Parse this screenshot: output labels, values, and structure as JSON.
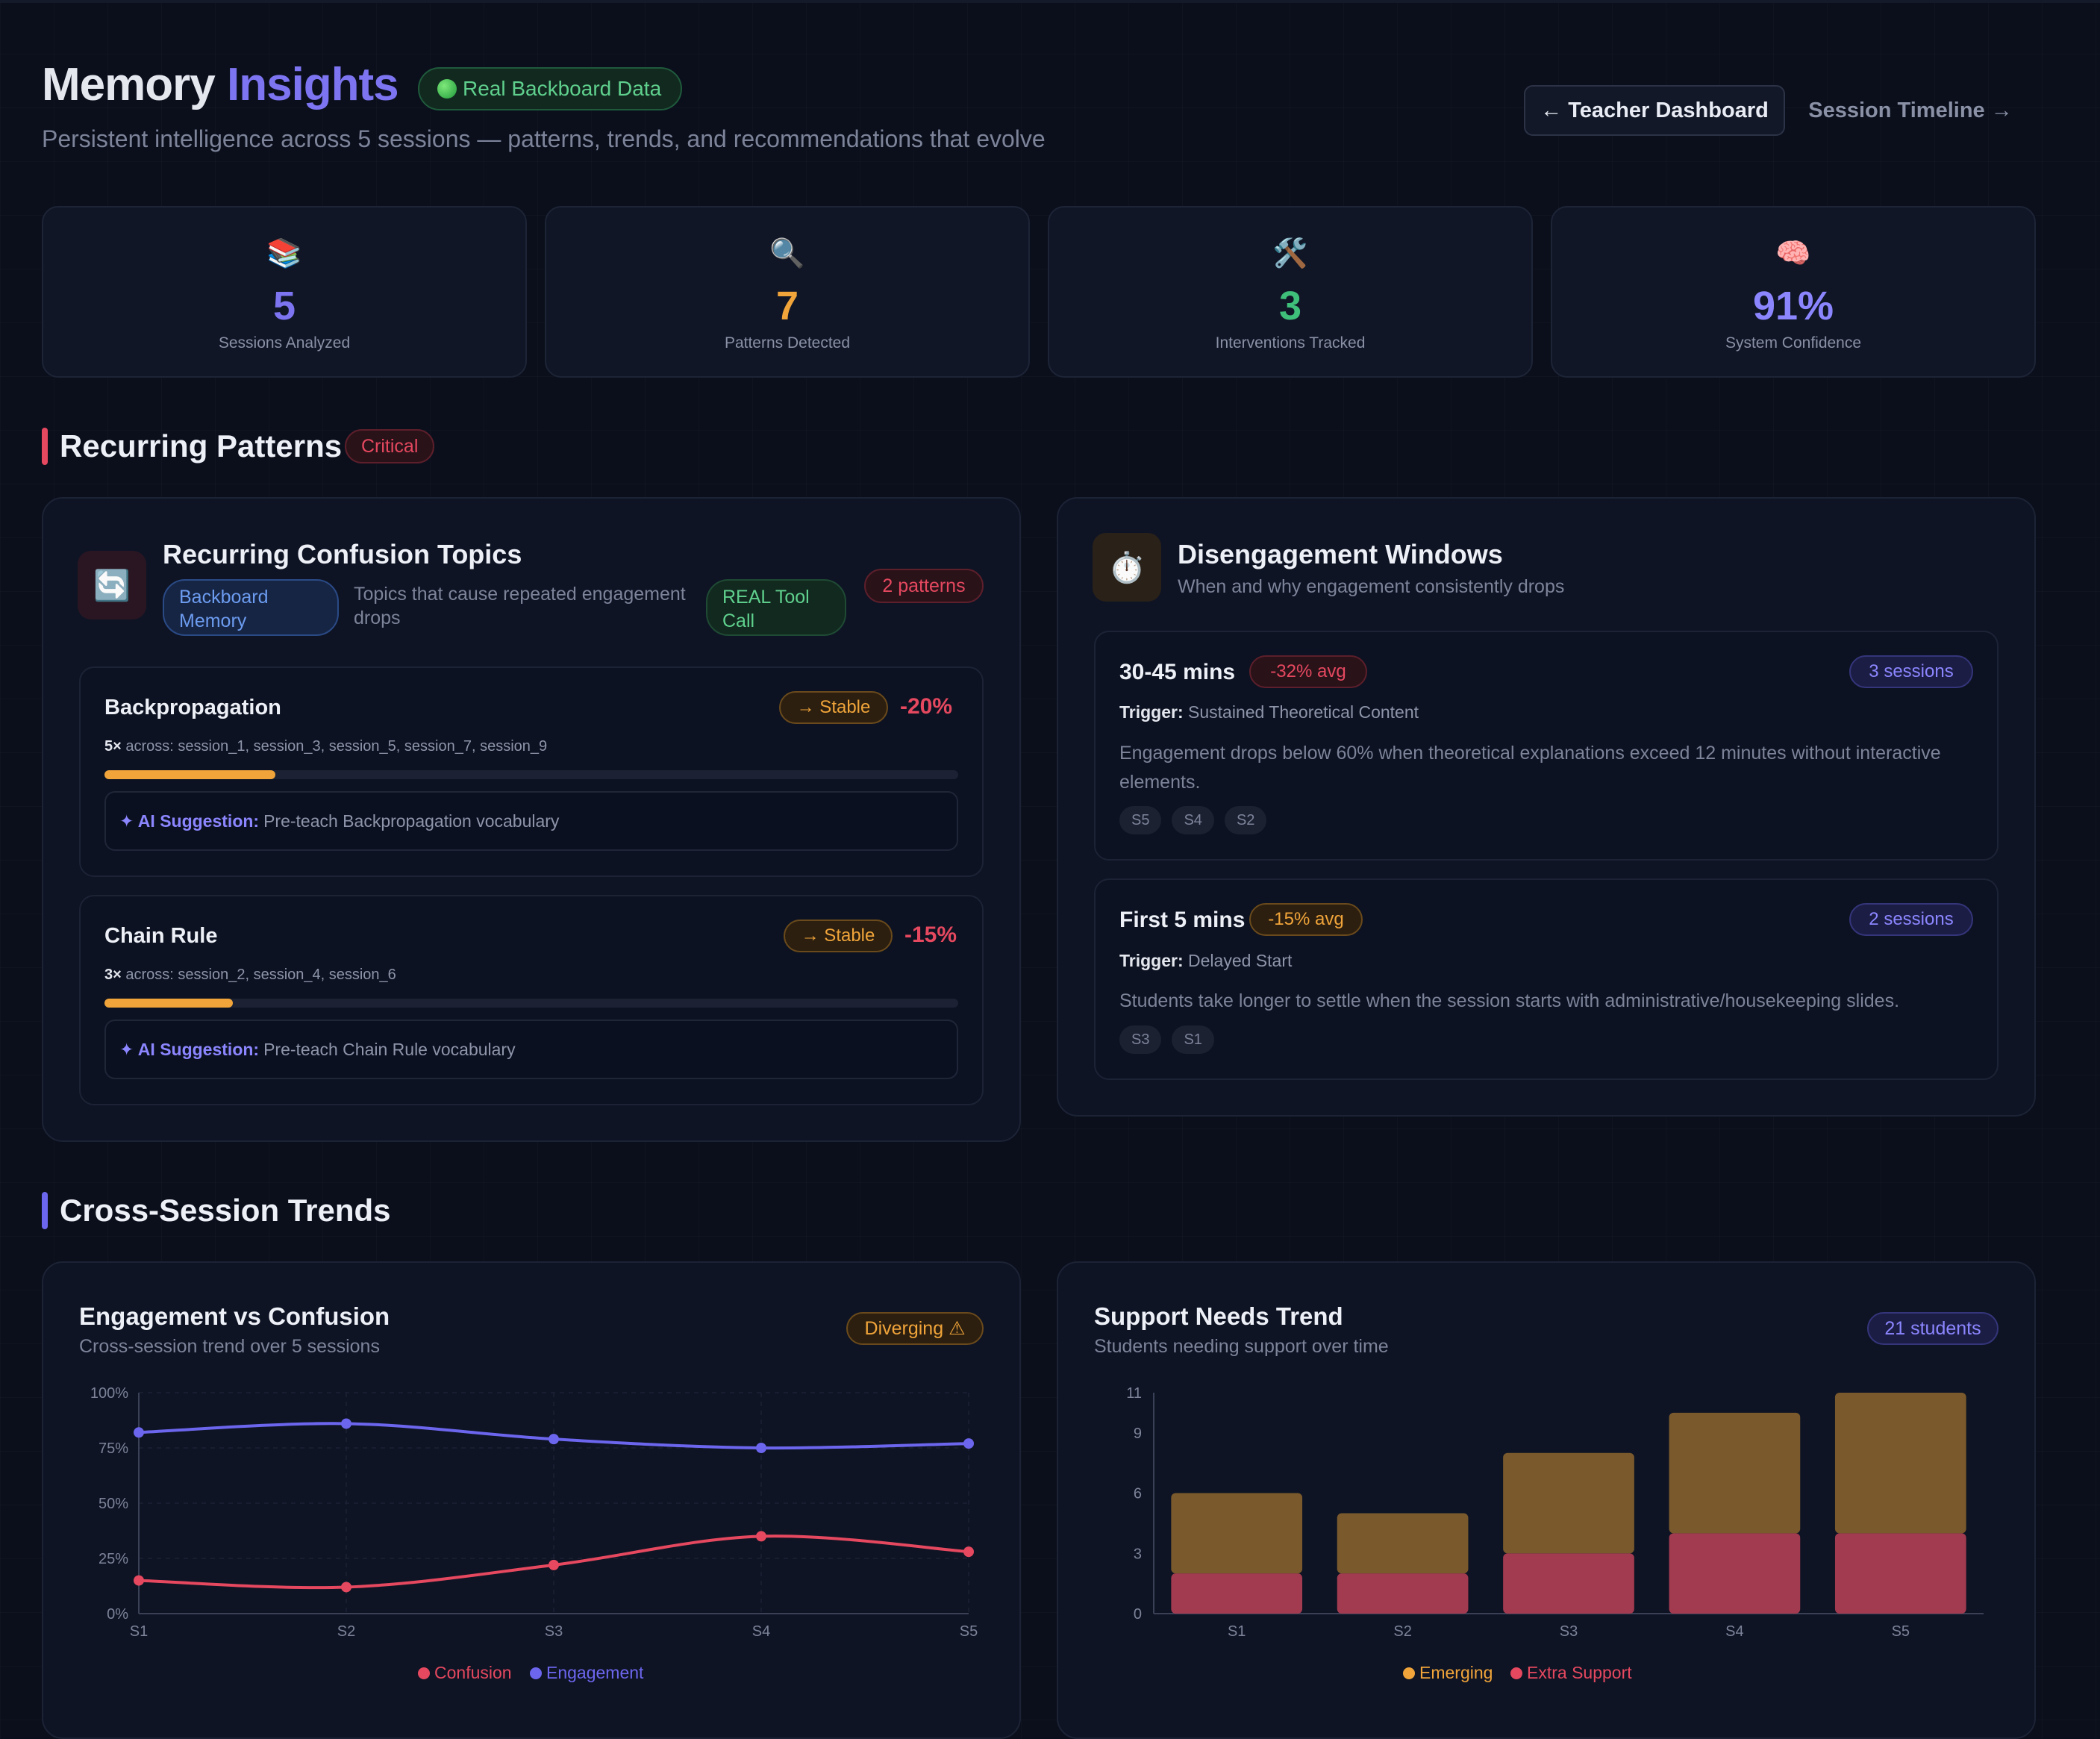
{
  "header": {
    "title_main": "Memory",
    "title_accent": "Insights",
    "badge": "Real Backboard Data",
    "subtitle": "Persistent intelligence across 5 sessions — patterns, trends, and recommendations that evolve",
    "nav_back": "← Teacher Dashboard",
    "nav_next": "Session Timeline →"
  },
  "stats": [
    {
      "icon": "📚",
      "value": "5",
      "label": "Sessions Analyzed",
      "color": "#7c74f0"
    },
    {
      "icon": "🔍",
      "value": "7",
      "label": "Patterns Detected",
      "color": "#f0a43a"
    },
    {
      "icon": "🛠️",
      "value": "3",
      "label": "Interventions Tracked",
      "color": "#3fc07a"
    },
    {
      "icon": "🧠",
      "value": "91%",
      "label": "System Confidence",
      "color": "#8b86ff"
    }
  ],
  "recurring": {
    "section_title": "Recurring Patterns",
    "section_badge": "Critical",
    "confusion": {
      "icon": "🔄",
      "title": "Recurring Confusion Topics",
      "source_badge": "Backboard Memory",
      "description": "Topics that cause repeated engagement drops",
      "tool_badge": "REAL Tool Call",
      "count_badge": "2 patterns",
      "items": [
        {
          "name": "Backpropagation",
          "trend": "→ Stable",
          "delta": "-20%",
          "count": "5×",
          "sessions": "across: session_1, session_3, session_5, session_7, session_9",
          "level": 0.2,
          "suggestion_label": "✦ AI Suggestion:",
          "suggestion": "Pre-teach Backpropagation vocabulary"
        },
        {
          "name": "Chain Rule",
          "trend": "→ Stable",
          "delta": "-15%",
          "count": "3×",
          "sessions": "across: session_2, session_4, session_6",
          "level": 0.15,
          "suggestion_label": "✦ AI Suggestion:",
          "suggestion": "Pre-teach Chain Rule vocabulary"
        }
      ]
    },
    "disengagement": {
      "icon": "⏱️",
      "title": "Disengagement Windows",
      "description": "When and why engagement consistently drops",
      "items": [
        {
          "window": "30-45 mins",
          "avg": "-32% avg",
          "avg_style": "red",
          "sessions": "3 sessions",
          "trigger_label": "Trigger:",
          "trigger": "Sustained Theoretical Content",
          "detail": "Engagement drops below 60% when theoretical explanations exceed 12 minutes without interactive elements.",
          "tags": [
            "S5",
            "S4",
            "S2"
          ]
        },
        {
          "window": "First 5 mins",
          "avg": "-15% avg",
          "avg_style": "amber",
          "sessions": "2 sessions",
          "trigger_label": "Trigger:",
          "trigger": "Delayed Start",
          "detail": "Students take longer to settle when the session starts with administrative/housekeeping slides.",
          "tags": [
            "S3",
            "S1"
          ]
        }
      ]
    }
  },
  "trends": {
    "section_title": "Cross-Session Trends",
    "engagement_card": {
      "title": "Engagement vs Confusion",
      "subtitle": "Cross-session trend over 5 sessions",
      "badge": "Diverging ⚠"
    },
    "support_card": {
      "title": "Support Needs Trend",
      "subtitle": "Students needing support over time",
      "badge": "21 students"
    }
  },
  "chart_data": [
    {
      "type": "line",
      "x": [
        "S1",
        "S2",
        "S3",
        "S4",
        "S5"
      ],
      "series": [
        {
          "name": "Confusion",
          "values": [
            15,
            12,
            22,
            35,
            28
          ],
          "color": "#e5485f"
        },
        {
          "name": "Engagement",
          "values": [
            82,
            86,
            79,
            75,
            77
          ],
          "color": "#6c66ee"
        }
      ],
      "yticks": [
        "0%",
        "25%",
        "50%",
        "75%",
        "100%"
      ],
      "ylim": [
        0,
        100
      ],
      "grid": true,
      "legend": "bottom"
    },
    {
      "type": "bar",
      "stacked": true,
      "categories": [
        "S1",
        "S2",
        "S3",
        "S4",
        "S5"
      ],
      "series": [
        {
          "name": "Extra Support",
          "values": [
            2,
            2,
            3,
            4,
            4
          ],
          "color": "#a23a50"
        },
        {
          "name": "Emerging",
          "values": [
            4,
            3,
            5,
            6,
            7
          ],
          "color": "#7a5a2c"
        }
      ],
      "yticks": [
        "0",
        "3",
        "6",
        "9",
        "11"
      ],
      "ylim": [
        0,
        11
      ],
      "legend": "bottom",
      "legend_order": [
        "Emerging",
        "Extra Support"
      ],
      "legend_colors": {
        "Emerging": "#f0a43a",
        "Extra Support": "#e5485f"
      }
    }
  ]
}
